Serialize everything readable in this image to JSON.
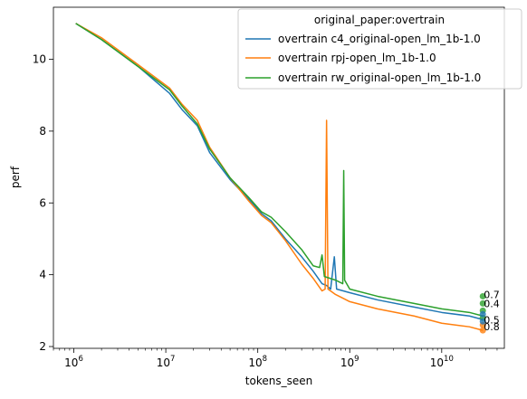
{
  "chart_data": {
    "type": "line",
    "xlabel": "tokens_seen",
    "ylabel": "perf",
    "xscale": "log",
    "xlim": [
      600000,
      48000000000
    ],
    "ylim": [
      1.95,
      11.45
    ],
    "x_ticks": [
      {
        "value": 1000000,
        "base": "10",
        "exp": "6"
      },
      {
        "value": 10000000,
        "base": "10",
        "exp": "7"
      },
      {
        "value": 100000000,
        "base": "10",
        "exp": "8"
      },
      {
        "value": 1000000000,
        "base": "10",
        "exp": "9"
      },
      {
        "value": 10000000000,
        "base": "10",
        "exp": "10"
      }
    ],
    "y_ticks": [
      2,
      4,
      6,
      8,
      10
    ],
    "grid": false,
    "legend": {
      "title": "original_paper:overtrain",
      "placement": "top-right"
    },
    "series": [
      {
        "name": "overtrain c4_original-open_lm_1b-1.0",
        "color": "#1f77b4",
        "points": [
          [
            1050000,
            11.0
          ],
          [
            2000000,
            10.55
          ],
          [
            5000000,
            9.8
          ],
          [
            11000000,
            9.05
          ],
          [
            15000000,
            8.6
          ],
          [
            22000000,
            8.15
          ],
          [
            30000000,
            7.4
          ],
          [
            50000000,
            6.65
          ],
          [
            80000000,
            6.1
          ],
          [
            110000000,
            5.7
          ],
          [
            140000000,
            5.5
          ],
          [
            200000000,
            5.0
          ],
          [
            300000000,
            4.5
          ],
          [
            400000000,
            4.1
          ],
          [
            500000000,
            3.75
          ],
          [
            560000000,
            3.7
          ],
          [
            620000000,
            3.6
          ],
          [
            680000000,
            4.5
          ],
          [
            720000000,
            3.6
          ],
          [
            850000000,
            3.55
          ],
          [
            1000000000,
            3.5
          ],
          [
            2000000000,
            3.3
          ],
          [
            5000000000,
            3.1
          ],
          [
            10000000000,
            2.95
          ],
          [
            20000000000,
            2.85
          ],
          [
            28000000000,
            2.75
          ]
        ]
      },
      {
        "name": "overtrain rpj-open_lm_1b-1.0",
        "color": "#ff7f0e",
        "points": [
          [
            1050000,
            11.0
          ],
          [
            2000000,
            10.6
          ],
          [
            5000000,
            9.85
          ],
          [
            11000000,
            9.2
          ],
          [
            15000000,
            8.75
          ],
          [
            22000000,
            8.3
          ],
          [
            30000000,
            7.55
          ],
          [
            50000000,
            6.7
          ],
          [
            80000000,
            6.05
          ],
          [
            110000000,
            5.65
          ],
          [
            140000000,
            5.45
          ],
          [
            200000000,
            4.95
          ],
          [
            300000000,
            4.3
          ],
          [
            400000000,
            3.9
          ],
          [
            500000000,
            3.55
          ],
          [
            540000000,
            3.6
          ],
          [
            560000000,
            8.3
          ],
          [
            580000000,
            3.6
          ],
          [
            700000000,
            3.45
          ],
          [
            1000000000,
            3.25
          ],
          [
            2000000000,
            3.05
          ],
          [
            5000000000,
            2.85
          ],
          [
            10000000000,
            2.65
          ],
          [
            20000000000,
            2.55
          ],
          [
            28000000000,
            2.45
          ]
        ]
      },
      {
        "name": "overtrain rw_original-open_lm_1b-1.0",
        "color": "#2ca02c",
        "points": [
          [
            1050000,
            11.0
          ],
          [
            2000000,
            10.55
          ],
          [
            5000000,
            9.8
          ],
          [
            11000000,
            9.15
          ],
          [
            15000000,
            8.7
          ],
          [
            22000000,
            8.2
          ],
          [
            30000000,
            7.5
          ],
          [
            50000000,
            6.7
          ],
          [
            80000000,
            6.15
          ],
          [
            110000000,
            5.75
          ],
          [
            140000000,
            5.6
          ],
          [
            200000000,
            5.2
          ],
          [
            300000000,
            4.7
          ],
          [
            400000000,
            4.25
          ],
          [
            470000000,
            4.2
          ],
          [
            500000000,
            4.55
          ],
          [
            530000000,
            3.95
          ],
          [
            700000000,
            3.85
          ],
          [
            840000000,
            3.75
          ],
          [
            860000000,
            6.9
          ],
          [
            880000000,
            3.85
          ],
          [
            1000000000,
            3.6
          ],
          [
            2000000000,
            3.4
          ],
          [
            5000000000,
            3.2
          ],
          [
            10000000000,
            3.05
          ],
          [
            20000000000,
            2.95
          ],
          [
            28000000000,
            2.85
          ]
        ]
      }
    ],
    "annotations": [
      {
        "text": "0.7",
        "x": 28000000000,
        "y": 3.45
      },
      {
        "text": "0.4",
        "x": 28000000000,
        "y": 3.2
      },
      {
        "text": "0.5",
        "x": 28000000000,
        "y": 2.75
      },
      {
        "text": "0.8",
        "x": 28000000000,
        "y": 2.55
      }
    ],
    "end_markers": [
      {
        "x": 28000000000,
        "y": 3.4,
        "color": "#2ca02c"
      },
      {
        "x": 28000000000,
        "y": 3.2,
        "color": "#2ca02c"
      },
      {
        "x": 28000000000,
        "y": 3.0,
        "color": "#2ca02c"
      },
      {
        "x": 28000000000,
        "y": 2.8,
        "color": "#2ca02c"
      },
      {
        "x": 28000000000,
        "y": 2.6,
        "color": "#ff7f0e"
      },
      {
        "x": 28000000000,
        "y": 2.45,
        "color": "#ff7f0e"
      },
      {
        "x": 28000000000,
        "y": 2.9,
        "color": "#1f77b4"
      },
      {
        "x": 28000000000,
        "y": 2.7,
        "color": "#1f77b4"
      }
    ]
  }
}
